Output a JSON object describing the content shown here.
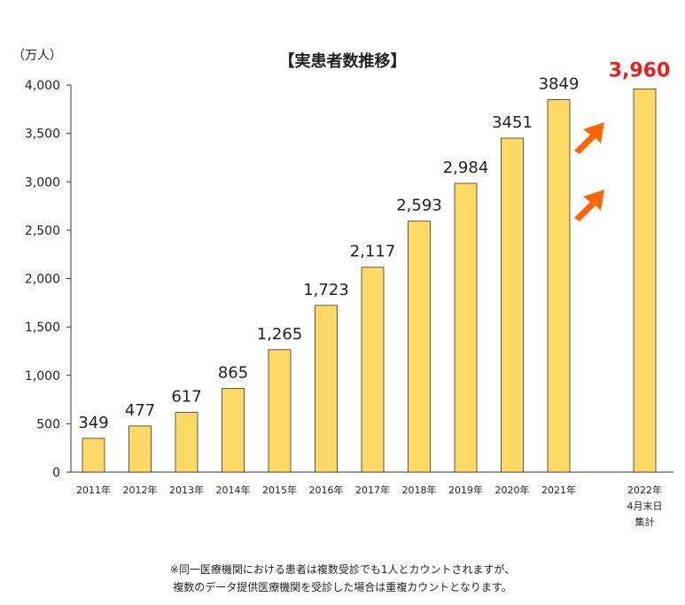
{
  "chart_data": {
    "type": "bar",
    "title": "【実患者数推移】",
    "ylabel": "（万人）",
    "ylim": [
      0,
      4000
    ],
    "yticks": [
      "0",
      "500",
      "1,000",
      "1,500",
      "2,000",
      "2,500",
      "3,000",
      "3,500",
      "4,000"
    ],
    "categories": [
      "2011年",
      "2012年",
      "2013年",
      "2014年",
      "2015年",
      "2016年",
      "2017年",
      "2018年",
      "2019年",
      "2020年",
      "2021年",
      "2022年4月末日集計"
    ],
    "category_lines": [
      [
        "2011年"
      ],
      [
        "2012年"
      ],
      [
        "2013年"
      ],
      [
        "2014年"
      ],
      [
        "2015年"
      ],
      [
        "2016年"
      ],
      [
        "2017年"
      ],
      [
        "2018年"
      ],
      [
        "2019年"
      ],
      [
        "2020年"
      ],
      [
        "2021年"
      ],
      [
        "2022年",
        "4月末日",
        "集計"
      ]
    ],
    "values": [
      349,
      477,
      617,
      865,
      1265,
      1723,
      2117,
      2593,
      2984,
      3451,
      3849,
      3960
    ],
    "value_labels": [
      "349",
      "477",
      "617",
      "865",
      "1,265",
      "1,723",
      "2,117",
      "2,593",
      "2,984",
      "3451",
      "3849",
      "3,960"
    ],
    "highlight_label_color": "#e8201e",
    "bar_color": "#ffd966",
    "bar_edge_color": "#333333",
    "arrow_color": "#ff6600",
    "grid": false
  },
  "notes": [
    "※同一医療機関における患者は複数受診でも1人とカウントされますが、",
    "複数のデータ提供医療機関を受診した場合は重複カウントとなります。"
  ]
}
